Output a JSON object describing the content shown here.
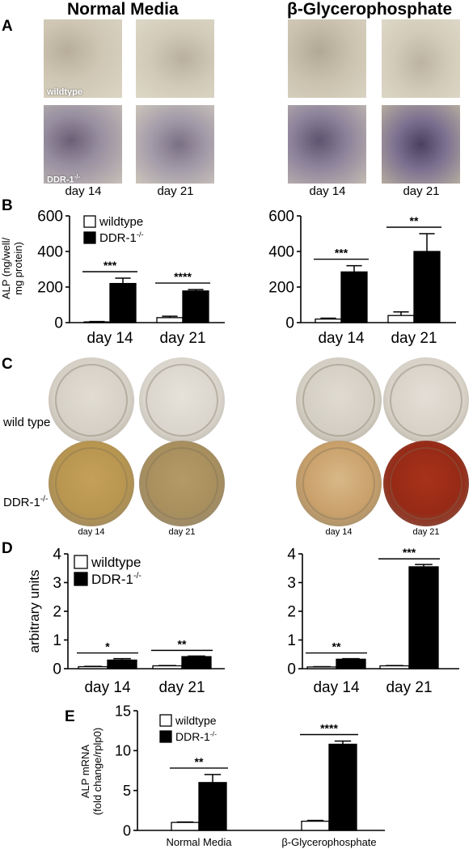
{
  "headers": {
    "left": "Normal Media",
    "right": "β-Glycerophosphate"
  },
  "panel_letters": {
    "a": "A",
    "b": "B",
    "c": "C",
    "d": "D",
    "e": "E"
  },
  "panelA": {
    "inset_wt": "wildtype",
    "inset_ko": "DDR-1",
    "inset_ko_sup": "-/-",
    "day_labels": [
      "day 14",
      "day 21",
      "day 14",
      "day 21"
    ]
  },
  "panelC": {
    "row_wt": "wild type",
    "row_ko": "DDR-1",
    "row_ko_sup": "-/-",
    "day_labels": [
      "day 14",
      "day 21",
      "day 14",
      "day 21"
    ]
  },
  "chart_data": [
    {
      "type": "bar",
      "panel": "B-left",
      "categories": [
        "day 14",
        "day 21"
      ],
      "series": [
        {
          "name": "wildtype",
          "values": [
            4,
            28
          ],
          "errors": [
            2,
            8
          ]
        },
        {
          "name": "DDR-1-/-",
          "values": [
            220,
            178
          ],
          "errors": [
            30,
            8
          ]
        }
      ],
      "ylabel_lines": [
        "ALP (ng/well/",
        "mg protein)"
      ],
      "ylim": [
        0,
        600
      ],
      "yticks": [
        "0",
        "200",
        "400",
        "600"
      ],
      "significance": [
        "***",
        "****"
      ],
      "legend": [
        "wildtype",
        "DDR-1"
      ],
      "legend_sup": [
        "",
        "-/-"
      ]
    },
    {
      "type": "bar",
      "panel": "B-right",
      "categories": [
        "day 14",
        "day 21"
      ],
      "series": [
        {
          "name": "wildtype",
          "values": [
            20,
            40
          ],
          "errors": [
            5,
            20
          ]
        },
        {
          "name": "DDR-1-/-",
          "values": [
            285,
            400
          ],
          "errors": [
            35,
            100
          ]
        }
      ],
      "ylim": [
        0,
        600
      ],
      "yticks": [
        "0",
        "200",
        "400",
        "600"
      ],
      "significance": [
        "***",
        "**"
      ]
    },
    {
      "type": "bar",
      "panel": "D-left",
      "categories": [
        "day 14",
        "day 21"
      ],
      "series": [
        {
          "name": "wildtype",
          "values": [
            0.07,
            0.1
          ],
          "errors": [
            0.01,
            0.01
          ]
        },
        {
          "name": "DDR-1-/-",
          "values": [
            0.3,
            0.42
          ],
          "errors": [
            0.05,
            0.02
          ]
        }
      ],
      "ylabel_lines": [
        "arbitrary units"
      ],
      "ylim": [
        0,
        4
      ],
      "yticks": [
        "0",
        "1",
        "2",
        "3",
        "4"
      ],
      "significance": [
        "*",
        "**"
      ],
      "legend": [
        "wildtype",
        "DDR-1"
      ],
      "legend_sup": [
        "",
        "-/-"
      ]
    },
    {
      "type": "bar",
      "panel": "D-right",
      "categories": [
        "day 14",
        "day 21"
      ],
      "series": [
        {
          "name": "wildtype",
          "values": [
            0.06,
            0.1
          ],
          "errors": [
            0.01,
            0.01
          ]
        },
        {
          "name": "DDR-1-/-",
          "values": [
            0.33,
            3.55
          ],
          "errors": [
            0.02,
            0.08
          ]
        }
      ],
      "ylim": [
        0,
        4
      ],
      "yticks": [
        "0",
        "1",
        "2",
        "3",
        "4"
      ],
      "significance": [
        "**",
        "***"
      ]
    },
    {
      "type": "bar",
      "panel": "E",
      "categories": [
        "Normal Media",
        "β-Glycerophosphate"
      ],
      "series": [
        {
          "name": "wildtype",
          "values": [
            1.0,
            1.15
          ],
          "errors": [
            0.05,
            0.1
          ]
        },
        {
          "name": "DDR-1-/-",
          "values": [
            6.0,
            10.8
          ],
          "errors": [
            1.0,
            0.4
          ]
        }
      ],
      "ylabel_lines": [
        "ALP mRNA",
        "(fold change/rplp0)"
      ],
      "ylim": [
        0,
        15
      ],
      "yticks": [
        "0",
        "5",
        "10",
        "15"
      ],
      "significance": [
        "**",
        "****"
      ],
      "legend": [
        "wildtype",
        "DDR-1"
      ],
      "legend_sup": [
        "",
        "-/-"
      ]
    }
  ]
}
